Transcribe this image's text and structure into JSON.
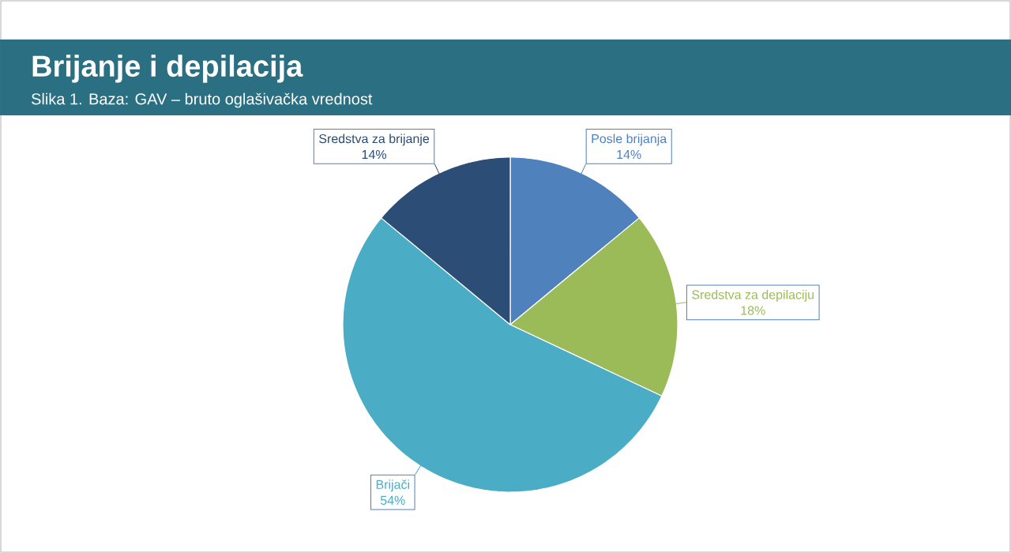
{
  "chart_data": {
    "type": "pie",
    "title": "Brijanje i depilacija",
    "subtitle": "Slika 1. Baza: GAV – bruto oglašivačka vrednost",
    "categories": [
      "Posle brijanja",
      "Sredstva za depilaciju",
      "Brijači",
      "Sredstva za brijanje"
    ],
    "values": [
      14,
      18,
      54,
      14
    ],
    "colors": [
      "#4f81bd",
      "#9bbb59",
      "#4bacc6",
      "#2c4d75"
    ],
    "value_labels": [
      "14%",
      "18%",
      "54%",
      "14%"
    ]
  }
}
